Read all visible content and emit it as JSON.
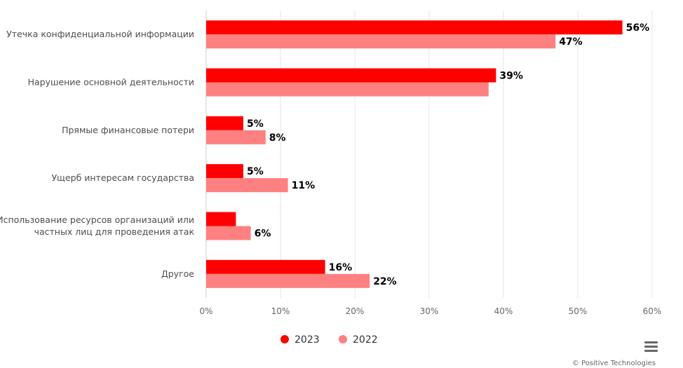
{
  "chart_data": {
    "type": "bar",
    "orientation": "horizontal",
    "categories": [
      [
        "Утечка конфиденциальной информации"
      ],
      [
        "Нарушение основной деятельности"
      ],
      [
        "Прямые финансовые потери"
      ],
      [
        "Ущерб интересам государства"
      ],
      [
        "Использование ресурсов организаций или",
        "частных лиц для проведения атак"
      ],
      [
        "Другое"
      ]
    ],
    "series": [
      {
        "name": "2023",
        "color": "#ff0000",
        "values": [
          56,
          39,
          5,
          5,
          4,
          16
        ],
        "labels": [
          "56%",
          "39%",
          "5%",
          "5%",
          "",
          "16%"
        ]
      },
      {
        "name": "2022",
        "color": "#ff8080",
        "values": [
          47,
          38,
          8,
          11,
          6,
          22
        ],
        "labels": [
          "47%",
          "",
          "8%",
          "11%",
          "6%",
          "22%"
        ]
      }
    ],
    "x_ticks": [
      "0%",
      "10%",
      "20%",
      "30%",
      "40%",
      "50%",
      "60%"
    ],
    "xlim": [
      0,
      60
    ],
    "grid": true,
    "legend": "bottom-center"
  },
  "credit": "© Positive Technologies",
  "menu_icon": "hamburger-menu-icon"
}
